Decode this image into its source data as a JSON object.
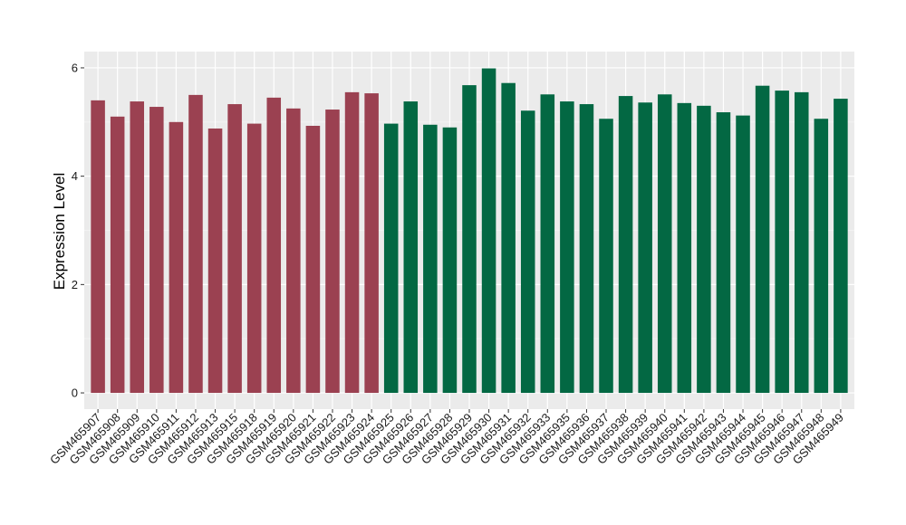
{
  "chart_data": {
    "type": "bar",
    "title": "",
    "xlabel": "",
    "ylabel": "Expression Level",
    "ylim": [
      -0.3,
      6.3
    ],
    "y_ticks": [
      0,
      2,
      4,
      6
    ],
    "y_tick_labels": [
      "0",
      "2",
      "4",
      "6"
    ],
    "grid": true,
    "legend": "none",
    "categories": [
      "GSM465907",
      "GSM465908",
      "GSM465909",
      "GSM465910",
      "GSM465911",
      "GSM465912",
      "GSM465913",
      "GSM465915",
      "GSM465918",
      "GSM465919",
      "GSM465920",
      "GSM465921",
      "GSM465922",
      "GSM465923",
      "GSM465924",
      "GSM465925",
      "GSM465926",
      "GSM465927",
      "GSM465928",
      "GSM465929",
      "GSM465930",
      "GSM465931",
      "GSM465932",
      "GSM465933",
      "GSM465935",
      "GSM465936",
      "GSM465937",
      "GSM465938",
      "GSM465939",
      "GSM465940",
      "GSM465941",
      "GSM465942",
      "GSM465943",
      "GSM465944",
      "GSM465945",
      "GSM465946",
      "GSM465947",
      "GSM465948",
      "GSM465949"
    ],
    "values": [
      5.4,
      5.1,
      5.38,
      5.28,
      5.0,
      5.5,
      4.88,
      5.33,
      4.97,
      5.45,
      5.25,
      4.93,
      5.23,
      5.55,
      5.53,
      4.97,
      5.38,
      4.95,
      4.9,
      5.68,
      5.99,
      5.72,
      5.21,
      5.51,
      5.38,
      5.33,
      5.06,
      5.48,
      5.36,
      5.51,
      5.35,
      5.3,
      5.18,
      5.12,
      5.67,
      5.58,
      5.55,
      5.06,
      5.43
    ],
    "groups": [
      0,
      0,
      0,
      0,
      0,
      0,
      0,
      0,
      0,
      0,
      0,
      0,
      0,
      0,
      0,
      1,
      1,
      1,
      1,
      1,
      1,
      1,
      1,
      1,
      1,
      1,
      1,
      1,
      1,
      1,
      1,
      1,
      1,
      1,
      1,
      1,
      1,
      1,
      1
    ],
    "colors": {
      "group_1": "#9b4151",
      "group_2": "#036843",
      "panel_background": "#ebebeb",
      "grid_major": "#ffffff",
      "grid_minor": "#f4f4f4"
    }
  }
}
